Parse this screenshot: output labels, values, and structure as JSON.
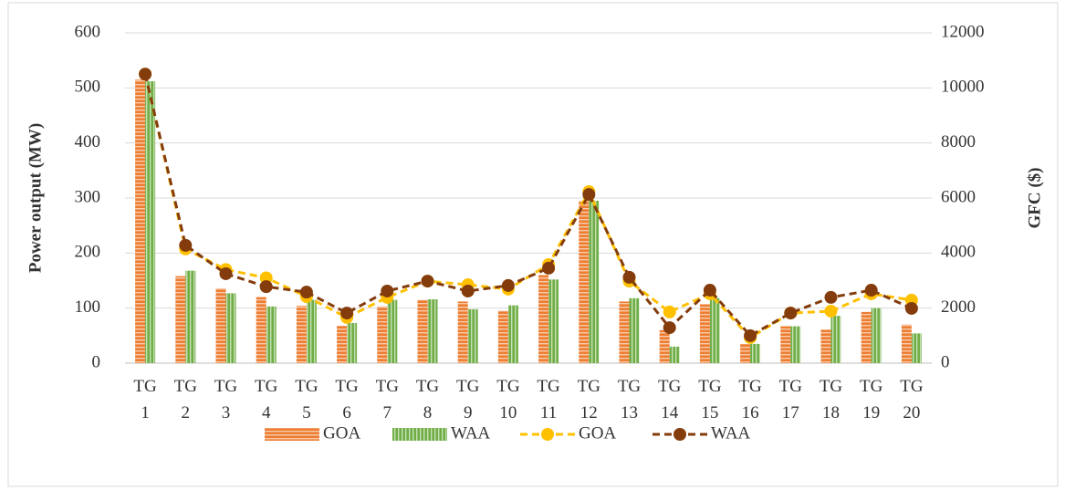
{
  "chart_data": {
    "type": "combo",
    "y_label": "Power output  (MW)",
    "y2_label": "GFC ($)",
    "categories": [
      "TG 1",
      "TG 2",
      "TG 3",
      "TG 4",
      "TG 5",
      "TG 6",
      "TG 7",
      "TG 8",
      "TG 9",
      "TG 10",
      "TG 11",
      "TG 12",
      "TG 13",
      "TG 14",
      "TG 15",
      "TG 16",
      "TG 17",
      "TG 18",
      "TG 19",
      "TG 20"
    ],
    "series": [
      {
        "name": "GOA",
        "type": "bar",
        "color": "#ed7d31",
        "values": [
          515,
          158,
          136,
          120,
          104,
          68,
          103,
          115,
          112,
          95,
          160,
          295,
          112,
          60,
          107,
          35,
          67,
          61,
          93,
          70
        ]
      },
      {
        "name": "WAA",
        "type": "bar",
        "color": "#70ad47",
        "values": [
          512,
          168,
          127,
          103,
          115,
          73,
          115,
          116,
          98,
          105,
          152,
          295,
          118,
          30,
          118,
          35,
          67,
          86,
          100,
          54
        ]
      },
      {
        "name": "GOA",
        "type": "line",
        "axis": "y2",
        "color": "#ffc000",
        "values": [
          10500,
          4150,
          3400,
          3100,
          2420,
          1660,
          2390,
          2980,
          2850,
          2690,
          3580,
          6230,
          2980,
          1860,
          2520,
          930,
          1820,
          1890,
          2520,
          2290
        ]
      },
      {
        "name": "WAA",
        "type": "line",
        "axis": "y2",
        "color": "#843c0c",
        "values": [
          10500,
          4280,
          3250,
          2780,
          2580,
          1820,
          2620,
          2980,
          2620,
          2820,
          3450,
          6130,
          3120,
          1290,
          2650,
          1000,
          1820,
          2390,
          2650,
          1990
        ]
      }
    ],
    "ylim": [
      0,
      600
    ],
    "yticks": [
      0,
      100,
      200,
      300,
      400,
      500,
      600
    ],
    "y2lim": [
      0,
      12000
    ],
    "y2ticks": [
      0,
      2000,
      4000,
      6000,
      8000,
      10000,
      12000
    ],
    "grid": true,
    "legend": "bottom"
  }
}
